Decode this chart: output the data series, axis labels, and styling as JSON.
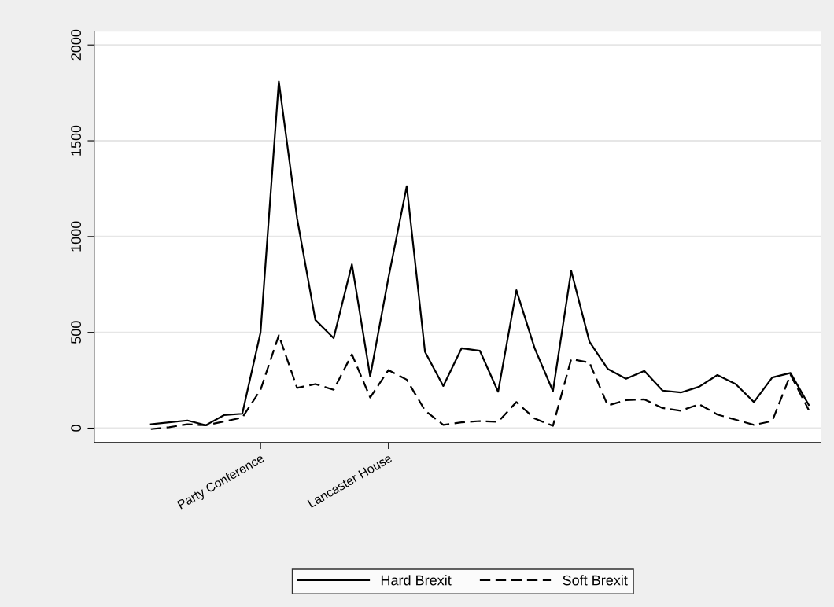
{
  "chart_data": {
    "type": "line",
    "categories": [
      null,
      null,
      null,
      null,
      null,
      null,
      "Party Conference",
      null,
      null,
      null,
      null,
      null,
      null,
      "Lancaster House",
      null,
      null,
      null,
      null,
      null,
      null,
      null,
      null,
      null,
      null,
      null,
      null,
      null,
      null,
      null,
      null,
      null,
      null,
      null,
      null,
      null,
      null,
      null
    ],
    "series": [
      {
        "name": "Hard Brexit",
        "color": "#000000",
        "line_style": "solid",
        "values": [
          20,
          30,
          40,
          15,
          68,
          75,
          500,
          1810,
          1095,
          565,
          470,
          855,
          270,
          785,
          1263,
          398,
          220,
          417,
          404,
          190,
          720,
          417,
          193,
          821,
          451,
          309,
          258,
          299,
          196,
          186,
          216,
          277,
          230,
          136,
          264,
          288,
          121
        ]
      },
      {
        "name": "Soft Brexit",
        "color": "#000000",
        "line_style": "dashed",
        "values": [
          -5,
          5,
          20,
          15,
          35,
          55,
          200,
          485,
          210,
          230,
          200,
          385,
          160,
          303,
          253,
          92,
          17,
          30,
          37,
          33,
          136,
          50,
          12,
          360,
          342,
          118,
          146,
          150,
          105,
          91,
          125,
          71,
          44,
          17,
          37,
          279,
          94
        ]
      }
    ],
    "ylim": [
      -75,
      2070
    ],
    "yticks": [
      0,
      500,
      1000,
      1500,
      2000
    ],
    "grid": "y",
    "legend": "bottom"
  }
}
